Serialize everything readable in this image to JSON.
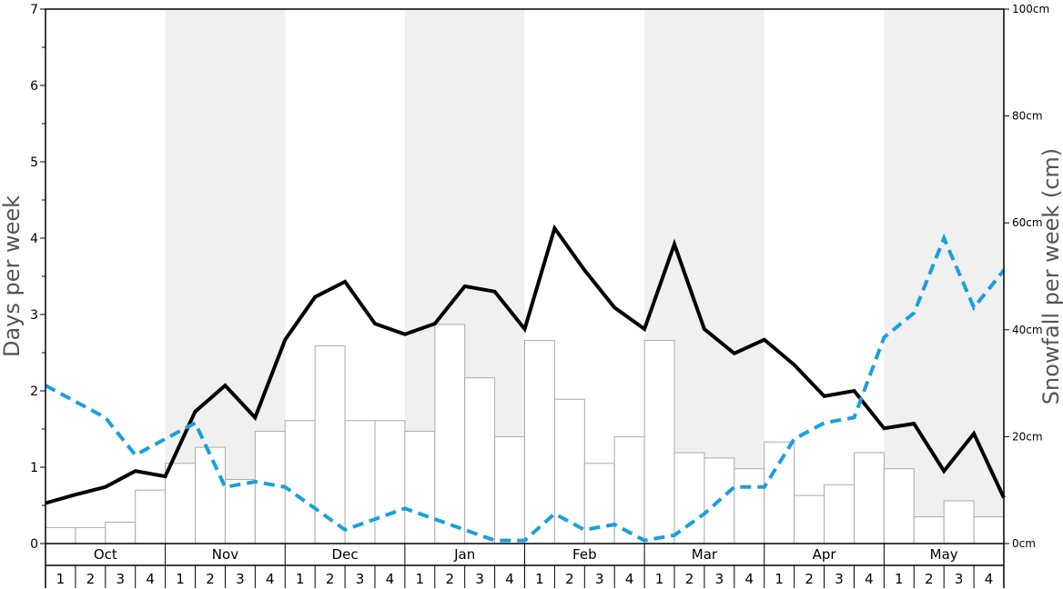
{
  "chart_data": {
    "type": "bar",
    "ylabel": "Days per week",
    "ylabel_right": "Snowfall per week (cm)",
    "ylim_left": [
      0,
      7
    ],
    "ylim_right": [
      0,
      100
    ],
    "left_ticks": [
      "0",
      "1",
      "2",
      "3",
      "4",
      "5",
      "6",
      "7"
    ],
    "right_ticks": [
      "0cm",
      "20cm",
      "40cm",
      "60cm",
      "80cm",
      "100cm"
    ],
    "months": [
      "Oct",
      "Nov",
      "Dec",
      "Jan",
      "Feb",
      "Mar",
      "Apr",
      "May"
    ],
    "weeks": [
      "1",
      "2",
      "3",
      "4"
    ],
    "grid": false,
    "series": [
      {
        "type": "bar",
        "axis": "right",
        "values": [
          3,
          3,
          4,
          10,
          15,
          18,
          12,
          21,
          23,
          37,
          23,
          23,
          21,
          41,
          31,
          20,
          38,
          27,
          15,
          20,
          38,
          17,
          16,
          14,
          19,
          9,
          11,
          17,
          14,
          5,
          8,
          5
        ]
      },
      {
        "type": "line",
        "axis": "left",
        "color": "#000000",
        "style": "solid",
        "values": [
          0.53,
          0.64,
          0.74,
          0.95,
          0.88,
          1.73,
          2.07,
          1.65,
          2.67,
          3.23,
          3.43,
          2.88,
          2.74,
          2.88,
          3.37,
          3.3,
          2.81,
          4.13,
          3.58,
          3.09,
          2.81,
          3.92,
          2.81,
          2.49,
          2.67,
          2.34,
          1.93,
          2.0,
          1.51,
          1.57,
          0.95,
          1.44,
          0.6
        ]
      },
      {
        "type": "line",
        "axis": "left",
        "color": "#1a9fdf",
        "style": "dashed",
        "values": [
          2.07,
          1.86,
          1.65,
          1.16,
          1.37,
          1.58,
          0.74,
          0.81,
          0.74,
          0.46,
          0.18,
          0.32,
          0.46,
          0.32,
          0.18,
          0.04,
          0.04,
          0.39,
          0.18,
          0.25,
          0.04,
          0.11,
          0.39,
          0.74,
          0.74,
          1.37,
          1.58,
          1.65,
          2.7,
          3.02,
          4.0,
          3.09,
          3.58
        ]
      }
    ]
  }
}
